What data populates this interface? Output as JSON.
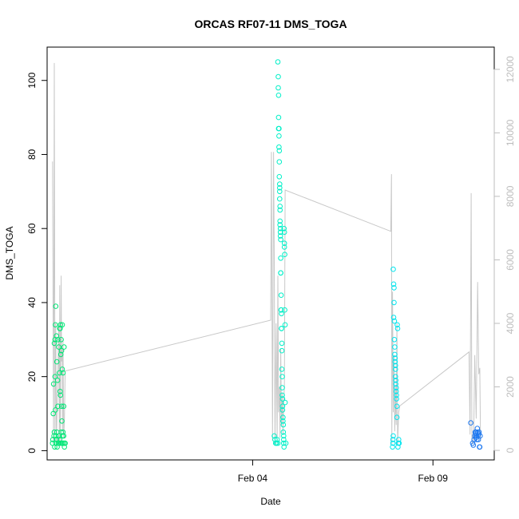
{
  "chart_data": {
    "type": "scatter",
    "title": "ORCAS RF07-11 DMS_TOGA",
    "xlabel": "Date",
    "ylabel": "DMS_TOGA",
    "xlim": [
      -1.7,
      10.7
    ],
    "ylim": [
      -2.5,
      109
    ],
    "x_ticks": [
      {
        "value": 4,
        "label": "Feb 04"
      },
      {
        "value": 9,
        "label": "Feb 09"
      }
    ],
    "y_ticks": [
      0,
      20,
      40,
      60,
      80,
      100
    ],
    "y2_ticks": [
      0,
      2000,
      4000,
      6000,
      8000,
      10000,
      12000
    ],
    "y2lim": [
      -300,
      12700
    ],
    "grid": false,
    "legend": "none",
    "colors": {
      "flight_a": "#00e676",
      "flight_b": "#00f0c8",
      "flight_c": "#00e5ee",
      "flight_d": "#1e78f0",
      "altitude": "#c8c8c8"
    },
    "series": [
      {
        "color": "#00e676",
        "x": [
          -1.55,
          -1.54,
          -1.53,
          -1.52,
          -1.51,
          -1.5,
          -1.5,
          -1.49,
          -1.48,
          -1.48,
          -1.47,
          -1.47,
          -1.46,
          -1.46,
          -1.45,
          -1.44,
          -1.44,
          -1.43,
          -1.43,
          -1.42,
          -1.41,
          -1.4,
          -1.4,
          -1.39,
          -1.38,
          -1.37,
          -1.36,
          -1.36,
          -1.35,
          -1.35,
          -1.34,
          -1.34,
          -1.33,
          -1.33,
          -1.32,
          -1.32,
          -1.31,
          -1.31,
          -1.3,
          -1.3,
          -1.29,
          -1.29,
          -1.28,
          -1.28,
          -1.27,
          -1.26,
          -1.26,
          -1.25,
          -1.25,
          -1.24,
          -1.24,
          -1.23,
          -1.22,
          -1.21,
          -1.2
        ],
        "y": [
          2,
          3,
          10,
          18,
          4,
          5,
          29,
          1,
          20,
          30,
          11,
          34,
          2,
          39,
          4,
          31,
          3,
          24,
          5,
          1,
          19,
          30,
          12,
          2,
          28,
          4,
          2,
          21,
          33,
          3,
          16,
          33,
          15,
          34,
          26,
          2,
          30,
          5,
          12,
          27,
          8,
          2,
          22,
          34,
          4,
          5,
          21,
          2,
          2,
          4,
          12,
          28,
          1,
          2,
          2
        ]
      },
      {
        "color": "#00f0c8",
        "x": [
          4.6,
          4.62,
          4.64,
          4.66,
          4.68,
          4.7,
          4.7,
          4.71,
          4.71,
          4.72,
          4.72,
          4.72,
          4.73,
          4.73,
          4.73,
          4.74,
          4.74,
          4.74,
          4.75,
          4.75,
          4.75,
          4.75,
          4.76,
          4.76,
          4.76,
          4.76,
          4.77,
          4.77,
          4.77,
          4.77,
          4.78,
          4.78,
          4.78,
          4.78,
          4.79,
          4.79,
          4.79,
          4.8,
          4.8,
          4.8,
          4.81,
          4.81,
          4.81,
          4.82,
          4.82,
          4.82,
          4.83,
          4.83,
          4.83,
          4.84,
          4.84,
          4.85,
          4.85,
          4.86,
          4.86,
          4.86,
          4.87,
          4.87,
          4.88,
          4.88,
          4.88,
          4.89,
          4.89,
          4.9,
          4.9,
          4.92
        ],
        "y": [
          4,
          3,
          2,
          2,
          3,
          105,
          2,
          101,
          98,
          96,
          90,
          87,
          87,
          85,
          82,
          81,
          78,
          74,
          71,
          72,
          70,
          68,
          66,
          65,
          62,
          61,
          59,
          58,
          60,
          59,
          52,
          57,
          48,
          48,
          42,
          38,
          38,
          37,
          33,
          33,
          29,
          27,
          22,
          20,
          17,
          15,
          14,
          12,
          11,
          9,
          8,
          7,
          5,
          4,
          3,
          2,
          1,
          60,
          59,
          56,
          55,
          53,
          38,
          34,
          13,
          2
        ]
      },
      {
        "color": "#00e5ee",
        "x": [
          7.88,
          7.89,
          7.89,
          7.9,
          7.9,
          7.91,
          7.91,
          7.92,
          7.92,
          7.93,
          7.93,
          7.94,
          7.94,
          7.95,
          7.95,
          7.96,
          7.96,
          7.96,
          7.97,
          7.97,
          7.98,
          7.98,
          7.99,
          7.99,
          8.0,
          8.0,
          8.01,
          8.02,
          8.03,
          8.04,
          8.05,
          8.06
        ],
        "y": [
          1,
          2,
          3,
          4,
          49,
          36,
          45,
          44,
          40,
          35,
          30,
          28,
          26,
          25,
          24,
          23,
          22,
          20,
          19,
          18,
          17,
          16,
          15,
          14,
          12,
          9,
          34,
          33,
          1,
          2,
          3,
          2
        ]
      },
      {
        "color": "#1e78f0",
        "x": [
          10.05,
          10.1,
          10.12,
          10.14,
          10.16,
          10.17,
          10.18,
          10.19,
          10.2,
          10.21,
          10.22,
          10.23,
          10.24,
          10.25,
          10.26,
          10.27,
          10.28,
          10.29,
          10.3,
          10.31
        ],
        "y": [
          7.5,
          2,
          1.5,
          3,
          4,
          5,
          4.5,
          3.5,
          5,
          4,
          3,
          6,
          5,
          4,
          3,
          4.5,
          5,
          1,
          1,
          4
        ]
      }
    ],
    "secondary_line": {
      "x": [
        -1.55,
        -1.52,
        -1.5,
        -1.48,
        -1.46,
        -1.44,
        -1.42,
        -1.4,
        -1.38,
        -1.36,
        -1.35,
        -1.33,
        -1.31,
        -1.3,
        -1.28,
        -1.27,
        -1.26,
        -1.24,
        -1.22,
        -1.2,
        4.5,
        4.52,
        4.55,
        4.58,
        4.6,
        4.62,
        4.65,
        4.68,
        4.7,
        4.72,
        4.74,
        4.76,
        4.78,
        4.8,
        4.82,
        4.84,
        4.86,
        4.88,
        4.9,
        7.83,
        7.85,
        7.86,
        7.88,
        7.9,
        7.92,
        7.94,
        7.96,
        7.98,
        8.0,
        8.02,
        8.05,
        8.08,
        10.0,
        10.03,
        10.06,
        10.08,
        10.1,
        10.13,
        10.16,
        10.2,
        10.24,
        10.27,
        10.3,
        10.32
      ],
      "y": [
        9100,
        300,
        12200,
        500,
        4000,
        200,
        1500,
        2500,
        3900,
        200,
        5200,
        300,
        5500,
        2800,
        3200,
        600,
        3500,
        400,
        1000,
        2500,
        4100,
        9400,
        300,
        9400,
        6000,
        200,
        4000,
        300,
        5500,
        1200,
        2000,
        400,
        3200,
        800,
        1800,
        500,
        1500,
        2000,
        8200,
        6900,
        8700,
        200,
        5000,
        1200,
        3000,
        600,
        2000,
        800,
        4000,
        200,
        1200,
        1400,
        3100,
        500,
        8100,
        300,
        200,
        500,
        3000,
        1000,
        5300,
        2400,
        2600,
        300
      ]
    }
  }
}
